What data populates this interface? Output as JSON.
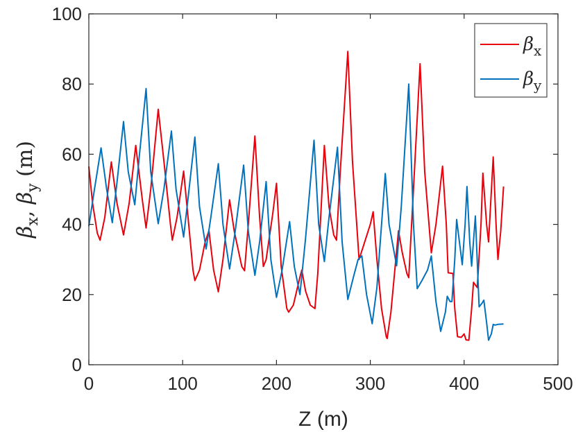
{
  "chart_data": {
    "type": "line",
    "title": "",
    "xlabel": "Z (m)",
    "ylabel": "βx, βy (m)",
    "ylabel_parts": {
      "beta": "β",
      "sub_x": "x",
      "sub_y": "y",
      "sep": ", ",
      "unit": " (m)"
    },
    "xlim": [
      0,
      500
    ],
    "ylim": [
      0,
      100
    ],
    "xticks": [
      0,
      100,
      200,
      300,
      400,
      500
    ],
    "yticks": [
      0,
      20,
      40,
      60,
      80,
      100
    ],
    "grid": false,
    "legend_position": "top-right",
    "series": [
      {
        "name": "βx",
        "sym": "β",
        "sub": "x",
        "color": "#e8000b",
        "points": [
          [
            0,
            56.5
          ],
          [
            4,
            46
          ],
          [
            9,
            37.5
          ],
          [
            12,
            35.5
          ],
          [
            17,
            42
          ],
          [
            24,
            57.8
          ],
          [
            30,
            46
          ],
          [
            37,
            37
          ],
          [
            43,
            46
          ],
          [
            50,
            62.5
          ],
          [
            57,
            47
          ],
          [
            61,
            39
          ],
          [
            66,
            50
          ],
          [
            74,
            72.8
          ],
          [
            80,
            58
          ],
          [
            87,
            40
          ],
          [
            89,
            35.5
          ],
          [
            94,
            42
          ],
          [
            101,
            55.2
          ],
          [
            105,
            44
          ],
          [
            111,
            27
          ],
          [
            113,
            24
          ],
          [
            118,
            27
          ],
          [
            124,
            35
          ],
          [
            128,
            38.2
          ],
          [
            133,
            27
          ],
          [
            138,
            20.8
          ],
          [
            143,
            30
          ],
          [
            150,
            47
          ],
          [
            155,
            38
          ],
          [
            163,
            28
          ],
          [
            166,
            26.8
          ],
          [
            170,
            40
          ],
          [
            177,
            65.2
          ],
          [
            182,
            42
          ],
          [
            186,
            28
          ],
          [
            189,
            30
          ],
          [
            196,
            43
          ],
          [
            200,
            51.7
          ],
          [
            205,
            28
          ],
          [
            211,
            16
          ],
          [
            213,
            15
          ],
          [
            218,
            17
          ],
          [
            225,
            25
          ],
          [
            227,
            27
          ],
          [
            231,
            21
          ],
          [
            236,
            17
          ],
          [
            241,
            16
          ],
          [
            244,
            26
          ],
          [
            251,
            62.5
          ],
          [
            256,
            45
          ],
          [
            261,
            37
          ],
          [
            264,
            35.5
          ],
          [
            268,
            55
          ],
          [
            276,
            89.3
          ],
          [
            281,
            58
          ],
          [
            286,
            38
          ],
          [
            288,
            30
          ],
          [
            294,
            35
          ],
          [
            300,
            40
          ],
          [
            303,
            43.6
          ],
          [
            307,
            30
          ],
          [
            312,
            16
          ],
          [
            317,
            8
          ],
          [
            318,
            7.5
          ],
          [
            322,
            15
          ],
          [
            330,
            38.2
          ],
          [
            334,
            32
          ],
          [
            339,
            26
          ],
          [
            341,
            24.8
          ],
          [
            346,
            50
          ],
          [
            353,
            85.8
          ],
          [
            358,
            55
          ],
          [
            365,
            31.9
          ],
          [
            370,
            40
          ],
          [
            377,
            56.6
          ],
          [
            381,
            40
          ],
          [
            383,
            26.2
          ],
          [
            388,
            26
          ],
          [
            390,
            16
          ],
          [
            393,
            8
          ],
          [
            397,
            7.8
          ],
          [
            400,
            8.8
          ],
          [
            402,
            7.1
          ],
          [
            405,
            7
          ],
          [
            408,
            16
          ],
          [
            410,
            23.5
          ],
          [
            414,
            22
          ],
          [
            418,
            40
          ],
          [
            420,
            54.6
          ],
          [
            424,
            40
          ],
          [
            426,
            35
          ],
          [
            431,
            59.2
          ],
          [
            434,
            40
          ],
          [
            436,
            30
          ],
          [
            439,
            38
          ],
          [
            442,
            50.8
          ]
        ]
      },
      {
        "name": "βy",
        "sym": "β",
        "sub": "y",
        "color": "#0072bd",
        "points": [
          [
            0,
            39.5
          ],
          [
            6,
            50
          ],
          [
            13,
            61.8
          ],
          [
            19,
            50
          ],
          [
            25,
            40.5
          ],
          [
            30,
            52
          ],
          [
            37,
            69.3
          ],
          [
            42,
            55
          ],
          [
            49,
            45.6
          ],
          [
            54,
            60
          ],
          [
            61,
            78.7
          ],
          [
            66,
            55
          ],
          [
            74,
            40.2
          ],
          [
            80,
            50
          ],
          [
            88,
            66.6
          ],
          [
            93,
            50
          ],
          [
            101,
            36.4
          ],
          [
            106,
            48
          ],
          [
            113,
            64.9
          ],
          [
            118,
            45
          ],
          [
            125,
            33
          ],
          [
            130,
            42
          ],
          [
            138,
            57.3
          ],
          [
            143,
            40
          ],
          [
            150,
            27.3
          ],
          [
            156,
            38
          ],
          [
            165,
            56.9
          ],
          [
            170,
            38
          ],
          [
            177,
            25.5
          ],
          [
            182,
            35
          ],
          [
            189,
            52.2
          ],
          [
            194,
            30
          ],
          [
            200,
            19.2
          ],
          [
            206,
            27
          ],
          [
            214,
            40.8
          ],
          [
            219,
            28
          ],
          [
            225,
            20
          ],
          [
            231,
            36
          ],
          [
            240,
            64
          ],
          [
            245,
            40
          ],
          [
            251,
            29.4
          ],
          [
            256,
            42
          ],
          [
            265,
            62
          ],
          [
            270,
            35
          ],
          [
            276,
            18.6
          ],
          [
            282,
            25
          ],
          [
            287,
            30
          ],
          [
            291,
            31
          ],
          [
            296,
            20
          ],
          [
            302,
            11.7
          ],
          [
            307,
            22
          ],
          [
            316,
            54.5
          ],
          [
            320,
            40
          ],
          [
            328,
            28.2
          ],
          [
            333,
            45
          ],
          [
            341,
            80
          ],
          [
            346,
            40
          ],
          [
            350,
            21.7
          ],
          [
            355,
            24
          ],
          [
            361,
            27
          ],
          [
            365,
            31
          ],
          [
            370,
            18
          ],
          [
            375,
            9.5
          ],
          [
            380,
            15
          ],
          [
            382,
            19.5
          ],
          [
            385,
            18
          ],
          [
            387,
            18
          ],
          [
            390,
            30
          ],
          [
            392,
            41.4
          ],
          [
            395,
            35
          ],
          [
            398,
            28.5
          ],
          [
            401,
            40
          ],
          [
            403,
            50.8
          ],
          [
            406,
            35
          ],
          [
            408,
            28.1
          ],
          [
            412,
            42.4
          ],
          [
            416,
            16.5
          ],
          [
            419,
            17.5
          ],
          [
            421,
            18.4
          ],
          [
            424,
            12
          ],
          [
            426,
            7
          ],
          [
            429,
            8.8
          ],
          [
            431,
            11.5
          ],
          [
            433,
            11.3
          ],
          [
            436,
            11.5
          ],
          [
            442,
            11.6
          ]
        ]
      }
    ]
  }
}
